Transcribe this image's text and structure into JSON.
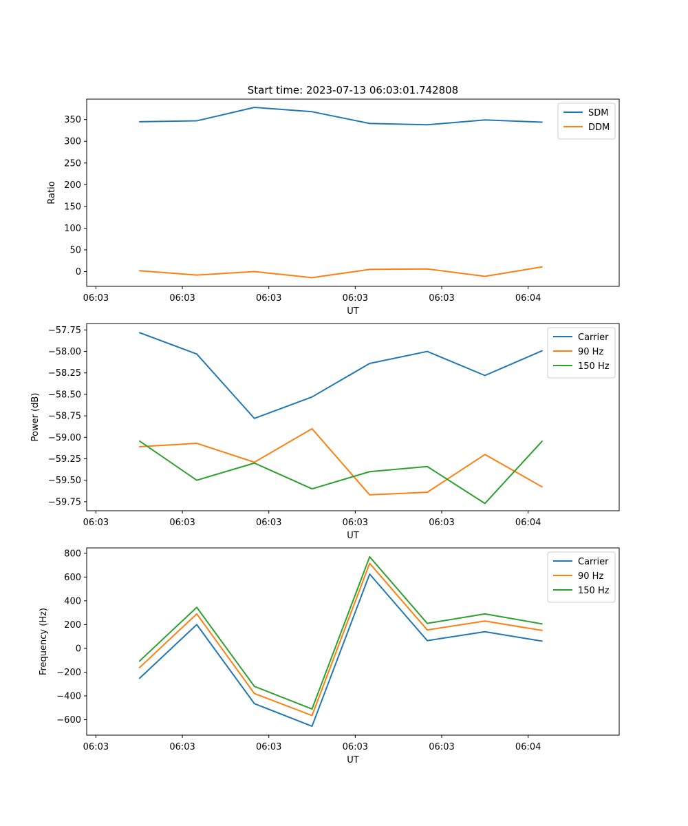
{
  "figure": {
    "title": "Start time: 2023-07-13 06:03:01.742808"
  },
  "chart_data": [
    {
      "type": "line",
      "title": "Start time: 2023-07-13 06:03:01.742808",
      "xlabel": "UT",
      "ylabel": "Ratio",
      "x_ticks": [
        {
          "v": 0,
          "label": "06:03"
        },
        {
          "v": 1.5,
          "label": "06:03"
        },
        {
          "v": 3,
          "label": "06:03"
        },
        {
          "v": 4.5,
          "label": "06:03"
        },
        {
          "v": 6,
          "label": "06:03"
        },
        {
          "v": 7.5,
          "label": "06:04"
        }
      ],
      "xlim": [
        -0.16,
        9.08
      ],
      "x": [
        0.75,
        1.75,
        2.75,
        3.75,
        4.75,
        5.75,
        6.75,
        7.75
      ],
      "ylim": [
        -34,
        397
      ],
      "y_ticks": [
        0,
        50,
        100,
        150,
        200,
        250,
        300,
        350
      ],
      "legend_position": "top-right",
      "series": [
        {
          "name": "SDM",
          "color": "#1f77b4",
          "values": [
            345,
            347,
            378,
            368,
            341,
            338,
            349,
            344
          ]
        },
        {
          "name": "DDM",
          "color": "#ff7f0e",
          "values": [
            2,
            -8,
            0,
            -14,
            5,
            6,
            -11,
            11
          ]
        }
      ]
    },
    {
      "type": "line",
      "title": "",
      "xlabel": "UT",
      "ylabel": "Power (dB)",
      "x_ticks": [
        {
          "v": 0,
          "label": "06:03"
        },
        {
          "v": 1.5,
          "label": "06:03"
        },
        {
          "v": 3,
          "label": "06:03"
        },
        {
          "v": 4.5,
          "label": "06:03"
        },
        {
          "v": 6,
          "label": "06:03"
        },
        {
          "v": 7.5,
          "label": "06:04"
        }
      ],
      "xlim": [
        -0.16,
        9.08
      ],
      "x": [
        0.75,
        1.75,
        2.75,
        3.75,
        4.75,
        5.75,
        6.75,
        7.75
      ],
      "ylim": [
        -59.855,
        -57.675
      ],
      "y_ticks": [
        {
          "v": -57.75,
          "label": "−57.75"
        },
        {
          "v": -58.0,
          "label": "−58.00"
        },
        {
          "v": -58.25,
          "label": "−58.25"
        },
        {
          "v": -58.5,
          "label": "−58.50"
        },
        {
          "v": -58.75,
          "label": "−58.75"
        },
        {
          "v": -59.0,
          "label": "−59.00"
        },
        {
          "v": -59.25,
          "label": "−59.25"
        },
        {
          "v": -59.5,
          "label": "−59.50"
        },
        {
          "v": -59.75,
          "label": "−59.75"
        }
      ],
      "legend_position": "top-right",
      "series": [
        {
          "name": "Carrier",
          "color": "#1f77b4",
          "values": [
            -57.78,
            -58.03,
            -58.78,
            -58.53,
            -58.14,
            -58.0,
            -58.28,
            -57.99
          ]
        },
        {
          "name": "90 Hz",
          "color": "#ff7f0e",
          "values": [
            -59.11,
            -59.07,
            -59.29,
            -58.9,
            -59.67,
            -59.64,
            -59.2,
            -59.58
          ]
        },
        {
          "name": "150 Hz",
          "color": "#2ca02c",
          "values": [
            -59.04,
            -59.5,
            -59.3,
            -59.6,
            -59.4,
            -59.34,
            -59.77,
            -59.04
          ]
        }
      ]
    },
    {
      "type": "line",
      "title": "",
      "xlabel": "UT",
      "ylabel": "Frequency (Hz)",
      "x_ticks": [
        {
          "v": 0,
          "label": "06:03"
        },
        {
          "v": 1.5,
          "label": "06:03"
        },
        {
          "v": 3,
          "label": "06:03"
        },
        {
          "v": 4.5,
          "label": "06:03"
        },
        {
          "v": 6,
          "label": "06:03"
        },
        {
          "v": 7.5,
          "label": "06:04"
        }
      ],
      "xlim": [
        -0.16,
        9.08
      ],
      "x": [
        0.75,
        1.75,
        2.75,
        3.75,
        4.75,
        5.75,
        6.75,
        7.75
      ],
      "ylim": [
        -730,
        845
      ],
      "y_ticks": [
        {
          "v": 800,
          "label": "800"
        },
        {
          "v": 600,
          "label": "600"
        },
        {
          "v": 400,
          "label": "400"
        },
        {
          "v": 200,
          "label": "200"
        },
        {
          "v": 0,
          "label": "0"
        },
        {
          "v": -200,
          "label": "−200"
        },
        {
          "v": -400,
          "label": "−400"
        },
        {
          "v": -600,
          "label": "−600"
        }
      ],
      "legend_position": "top-right",
      "series": [
        {
          "name": "Carrier",
          "color": "#1f77b4",
          "values": [
            -255,
            200,
            -465,
            -655,
            625,
            65,
            140,
            60
          ]
        },
        {
          "name": "90 Hz",
          "color": "#ff7f0e",
          "values": [
            -165,
            290,
            -380,
            -565,
            715,
            155,
            230,
            150
          ]
        },
        {
          "name": "150 Hz",
          "color": "#2ca02c",
          "values": [
            -110,
            345,
            -320,
            -510,
            770,
            210,
            290,
            205
          ]
        }
      ]
    }
  ]
}
